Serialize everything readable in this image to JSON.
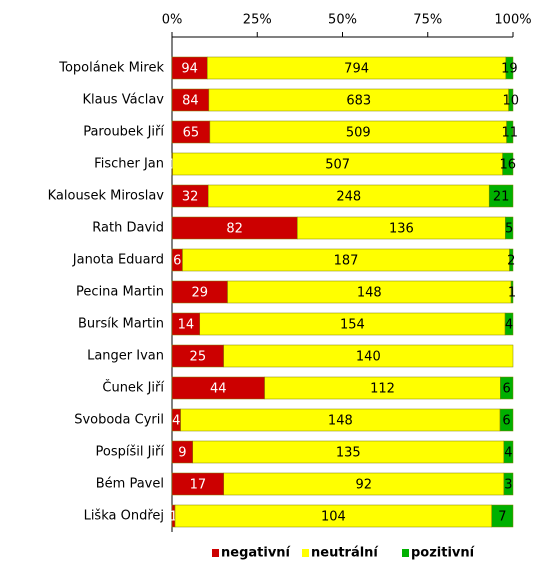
{
  "chart_data": {
    "type": "bar",
    "orientation": "horizontal",
    "stacking": "percent",
    "categories": [
      "Topolánek Mirek",
      "Klaus Václav",
      "Paroubek Jiří",
      "Fischer Jan",
      "Kalousek Miroslav",
      "Rath David",
      "Janota Eduard",
      "Pecina Martin",
      "Bursík Martin",
      "Langer Ivan",
      "Čunek Jiří",
      "Svoboda Cyril",
      "Pospíšil Jiří",
      "Bém Pavel",
      "Liška Ondřej"
    ],
    "series": [
      {
        "name": "negativní",
        "color": "#cc0000",
        "label_color": "#ffffff",
        "values": [
          94,
          84,
          65,
          1,
          32,
          82,
          6,
          29,
          14,
          25,
          44,
          4,
          9,
          17,
          1
        ]
      },
      {
        "name": "neutrální",
        "color": "#ffff00",
        "label_color": "#000000",
        "values": [
          794,
          683,
          509,
          507,
          248,
          136,
          187,
          148,
          154,
          140,
          112,
          148,
          135,
          92,
          104
        ]
      },
      {
        "name": "pozitivní",
        "color": "#00b000",
        "label_color": "#000000",
        "values": [
          19,
          10,
          11,
          16,
          21,
          5,
          2,
          1,
          4,
          0,
          6,
          6,
          4,
          3,
          7
        ]
      }
    ],
    "xlim": [
      0,
      100
    ],
    "xticks": [
      {
        "value": 0,
        "label": "0%"
      },
      {
        "value": 25,
        "label": "25%"
      },
      {
        "value": 50,
        "label": "50%"
      },
      {
        "value": 75,
        "label": "75%"
      },
      {
        "value": 100,
        "label": "100%"
      }
    ],
    "legend": "bottom"
  }
}
